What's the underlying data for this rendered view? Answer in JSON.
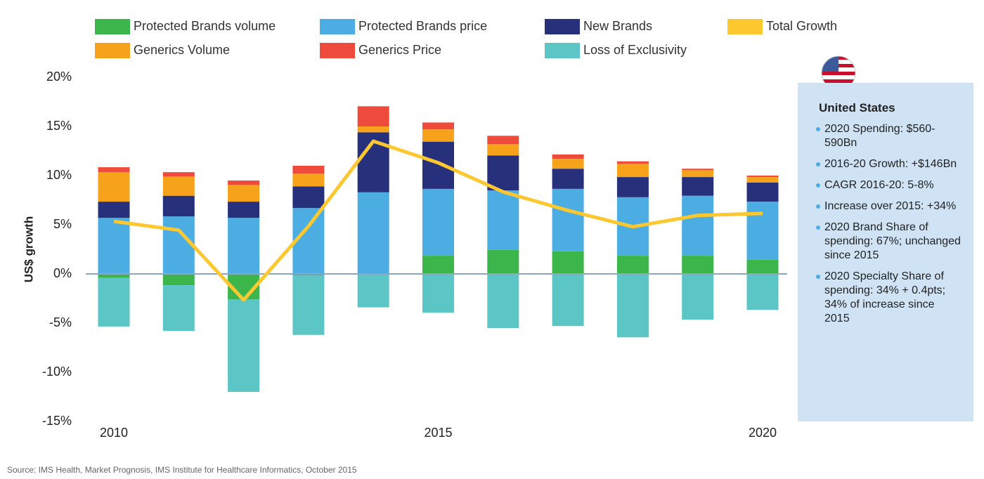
{
  "chart_data": {
    "type": "bar",
    "y_label": "US$ growth",
    "categories": [
      "2010",
      null,
      null,
      null,
      null,
      "2015",
      null,
      null,
      null,
      null,
      "2020"
    ],
    "ylim": [
      -15,
      20
    ],
    "yticks": [
      {
        "value": 20,
        "label": "20%"
      },
      {
        "value": 15,
        "label": "15%"
      },
      {
        "value": 10,
        "label": "10%"
      },
      {
        "value": 5,
        "label": "5%"
      },
      {
        "value": 0,
        "label": "0%"
      },
      {
        "value": -5,
        "label": "-5%"
      },
      {
        "value": -10,
        "label": "-10%"
      },
      {
        "value": -15,
        "label": "-15%"
      }
    ],
    "series": [
      {
        "name": "Protected Brands volume",
        "color": "#3cb54a",
        "values": [
          -0.4,
          -1.15,
          -2.6,
          -0.15,
          0,
          1.85,
          2.45,
          2.3,
          1.85,
          1.85,
          1.45
        ]
      },
      {
        "name": "Protected Brands price",
        "color": "#4cade2",
        "values": [
          5.7,
          5.85,
          5.7,
          6.7,
          8.3,
          6.8,
          6.05,
          6.35,
          5.95,
          6.1,
          5.9
        ]
      },
      {
        "name": "New Brands",
        "color": "#27307a",
        "values": [
          1.65,
          2.1,
          1.65,
          2.2,
          6.1,
          4.8,
          3.55,
          2.05,
          2.05,
          1.9,
          1.95
        ]
      },
      {
        "name": "Total Growth",
        "color": "#fdc82f",
        "type": "line",
        "values": [
          5.35,
          4.45,
          -2.65,
          4.85,
          13.5,
          11.3,
          8.35,
          6.45,
          4.8,
          5.95,
          6.15
        ]
      },
      {
        "name": "Generics Volume",
        "color": "#f7a21b",
        "values": [
          3.0,
          1.95,
          1.7,
          1.3,
          0.6,
          1.25,
          1.15,
          1.0,
          1.35,
          0.7,
          0.55
        ]
      },
      {
        "name": "Generics Price",
        "color": "#ef4b3c",
        "values": [
          0.5,
          0.45,
          0.45,
          0.8,
          2.05,
          0.7,
          0.85,
          0.45,
          0.25,
          0.15,
          0.15
        ]
      },
      {
        "name": "Loss of Exclusivity",
        "color": "#5cc5c5",
        "values": [
          -4.95,
          -4.65,
          -9.4,
          -6.05,
          -3.4,
          -3.95,
          -5.5,
          -5.3,
          -6.45,
          -4.65,
          -3.65
        ]
      }
    ]
  },
  "panel": {
    "title": "United States",
    "items": [
      "2020 Spending: $560-590Bn",
      "2016-20 Growth: +$146Bn",
      "CAGR 2016-20: 5-8%",
      "Increase over 2015: +34%",
      "2020 Brand Share of spending: 67%; unchanged since 2015",
      "2020 Specialty Share of spending: 34% + 0.4pts; 34% of increase since 2015"
    ]
  },
  "source": "Source: IMS Health, Market Prognosis, IMS Institute for Healthcare Informatics, October 2015"
}
